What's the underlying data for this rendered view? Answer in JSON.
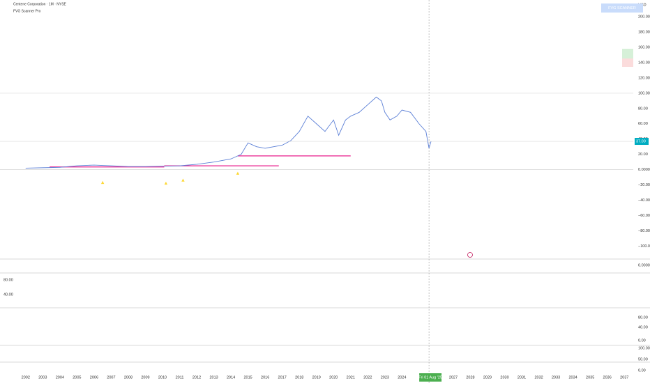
{
  "chart_data": {
    "type": "line",
    "title": "Centene Corporation · 1M · NYSE",
    "subtitle": "FVG Scanner Pro",
    "currency": "USD",
    "button": "FVG SCANNER",
    "date_label": "Fri 01 Aug '25",
    "date_line": 2025.58,
    "last_price": {
      "value": 37,
      "label": "37.00"
    },
    "color": "#5b7fd6",
    "x": [
      2002,
      2003,
      2004,
      2005,
      2006,
      2007,
      2008,
      2009,
      2010,
      2011,
      2012,
      2013,
      2014,
      2014.6,
      2015,
      2015.5,
      2016,
      2016.5,
      2017,
      2017.5,
      2018,
      2018.5,
      2019,
      2019.5,
      2020,
      2020.3,
      2020.7,
      2021,
      2021.5,
      2022,
      2022.5,
      2022.8,
      2023,
      2023.3,
      2023.7,
      2024,
      2024.5,
      2025,
      2025.4,
      2025.58,
      2025.7
    ],
    "values": [
      2,
      2.5,
      3,
      5,
      6,
      5,
      4,
      4,
      4.5,
      5,
      7,
      10,
      14,
      20,
      35,
      30,
      28,
      30,
      32,
      38,
      50,
      70,
      60,
      50,
      65,
      45,
      65,
      70,
      75,
      85,
      95,
      90,
      75,
      65,
      70,
      78,
      75,
      60,
      50,
      28,
      37
    ],
    "xlim": [
      2000.5,
      2038.5
    ],
    "ylim": [
      -117,
      222
    ],
    "xticks": [
      2002,
      2003,
      2004,
      2005,
      2006,
      2007,
      2008,
      2009,
      2010,
      2011,
      2012,
      2013,
      2014,
      2015,
      2016,
      2017,
      2018,
      2019,
      2020,
      2021,
      2022,
      2023,
      2024,
      2027,
      2028,
      2029,
      2030,
      2031,
      2032,
      2033,
      2034,
      2035,
      2036,
      2037
    ],
    "yticks": [
      {
        "value": 200,
        "label": "200.00"
      },
      {
        "value": 180,
        "label": "180.00"
      },
      {
        "value": 160,
        "label": "160.00"
      },
      {
        "value": 140,
        "label": "140.00"
      },
      {
        "value": 120,
        "label": "120.00"
      },
      {
        "value": 100,
        "label": "100.00"
      },
      {
        "value": 80,
        "label": "80.00"
      },
      {
        "value": 60,
        "label": "60.00"
      },
      {
        "value": 40,
        "label": "40.00"
      },
      {
        "value": 20,
        "label": "20.00"
      },
      {
        "value": 0,
        "label": "0.0000"
      },
      {
        "value": -20,
        "label": "−20.00"
      },
      {
        "value": -40,
        "label": "−40.00"
      },
      {
        "value": -60,
        "label": "−60.00"
      },
      {
        "value": -80,
        "label": "−80.00"
      },
      {
        "value": -100,
        "label": "−100.00"
      }
    ],
    "fvg_levels": [
      {
        "start": 2003.4,
        "end": 2010.1,
        "value": 3.5
      },
      {
        "start": 2010.1,
        "end": 2016.8,
        "value": 5
      },
      {
        "start": 2014.4,
        "end": 2021.0,
        "value": 18
      }
    ],
    "signals": {
      "x": [
        2006.5,
        2010.2,
        2011.2,
        2014.4
      ],
      "values": [
        -17,
        -18,
        -14,
        -5
      ]
    },
    "pane_labels": [
      "0.0000",
      "80.00",
      "40.00",
      "80.00",
      "40.00",
      "0.00",
      "100.00",
      "50.00",
      "0.00"
    ]
  }
}
